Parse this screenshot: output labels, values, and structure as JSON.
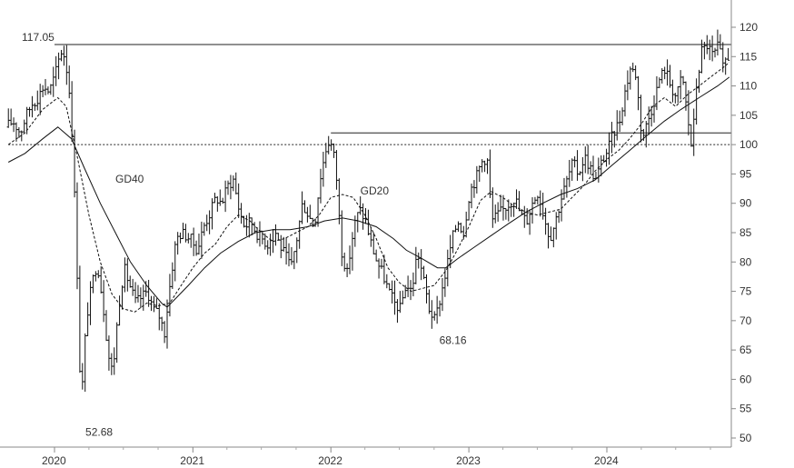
{
  "chart_data": {
    "type": "ohlc",
    "y_axis": {
      "side": "right",
      "ticks": [
        120,
        115,
        110,
        105,
        100,
        95,
        90,
        85,
        80,
        75,
        70,
        65,
        60,
        55,
        50
      ],
      "range": [
        48,
        124
      ]
    },
    "x_axis": {
      "range": [
        "2019-09-01",
        "2024-12-15"
      ],
      "ticks": [
        {
          "label": "2020",
          "date": "2020-01-01"
        },
        {
          "label": "2021",
          "date": "2021-01-01"
        },
        {
          "label": "2022",
          "date": "2022-01-01"
        },
        {
          "label": "2023",
          "date": "2023-01-01"
        },
        {
          "label": "2024",
          "date": "2024-01-01"
        }
      ]
    },
    "horizontal_lines": [
      {
        "value": 117.05,
        "style": "solid",
        "from": "2020-01-01",
        "to": "2024-12-15"
      },
      {
        "value": 102.0,
        "style": "solid",
        "from": "2022-01-01",
        "to": "2024-12-15"
      },
      {
        "value": 100,
        "style": "dotted",
        "from": "2019-09-01",
        "to": "2024-12-15"
      }
    ],
    "annotations": [
      {
        "text": "117.05",
        "date": "2020-01-01",
        "value": 117.05
      },
      {
        "text": "52.68",
        "date": "2020-03-18",
        "value": 52.68
      },
      {
        "text": "68.16",
        "date": "2022-10-10",
        "value": 68.16
      },
      {
        "text": "GD40",
        "date": "2020-06-10",
        "value": 93.5
      },
      {
        "text": "GD20",
        "date": "2022-03-20",
        "value": 91.5
      }
    ],
    "series": [
      {
        "name": "GD40",
        "style": "solid",
        "points": [
          [
            "2019-09-01",
            97.0
          ],
          [
            "2019-10-15",
            98.5
          ],
          [
            "2019-12-01",
            101.0
          ],
          [
            "2020-01-10",
            103.0
          ],
          [
            "2020-02-15",
            101.0
          ],
          [
            "2020-03-20",
            96.0
          ],
          [
            "2020-05-01",
            90.0
          ],
          [
            "2020-06-10",
            85.0
          ],
          [
            "2020-07-20",
            80.0
          ],
          [
            "2020-09-01",
            76.0
          ],
          [
            "2020-10-10",
            73.0
          ],
          [
            "2020-10-25",
            72.3
          ],
          [
            "2020-11-20",
            74.0
          ],
          [
            "2020-12-20",
            76.0
          ],
          [
            "2021-02-01",
            79.0
          ],
          [
            "2021-03-15",
            81.5
          ],
          [
            "2021-05-01",
            83.5
          ],
          [
            "2021-06-15",
            85.0
          ],
          [
            "2021-08-01",
            85.5
          ],
          [
            "2021-09-15",
            85.5
          ],
          [
            "2021-11-01",
            86.0
          ],
          [
            "2021-12-15",
            87.0
          ],
          [
            "2022-02-01",
            87.5
          ],
          [
            "2022-03-15",
            87.0
          ],
          [
            "2022-05-01",
            86.0
          ],
          [
            "2022-06-15",
            84.0
          ],
          [
            "2022-07-20",
            82.0
          ],
          [
            "2022-09-01",
            80.5
          ],
          [
            "2022-10-10",
            79.0
          ],
          [
            "2022-11-01",
            79.0
          ],
          [
            "2022-12-01",
            80.5
          ],
          [
            "2023-01-15",
            82.5
          ],
          [
            "2023-03-01",
            84.5
          ],
          [
            "2023-04-15",
            86.5
          ],
          [
            "2023-06-01",
            88.5
          ],
          [
            "2023-07-15",
            90.0
          ],
          [
            "2023-09-01",
            91.5
          ],
          [
            "2023-10-15",
            92.5
          ],
          [
            "2023-12-01",
            94.0
          ],
          [
            "2024-01-15",
            96.5
          ],
          [
            "2024-03-01",
            99.0
          ],
          [
            "2024-04-15",
            101.5
          ],
          [
            "2024-06-01",
            104.0
          ],
          [
            "2024-07-15",
            106.0
          ],
          [
            "2024-09-01",
            108.0
          ],
          [
            "2024-10-20",
            110.0
          ],
          [
            "2024-11-20",
            111.5
          ]
        ]
      },
      {
        "name": "GD20",
        "style": "dashed",
        "points": [
          [
            "2019-09-01",
            100.0
          ],
          [
            "2019-10-15",
            102.0
          ],
          [
            "2019-12-01",
            106.0
          ],
          [
            "2020-01-10",
            108.0
          ],
          [
            "2020-02-01",
            106.5
          ],
          [
            "2020-03-01",
            98.0
          ],
          [
            "2020-04-01",
            88.0
          ],
          [
            "2020-05-01",
            80.0
          ],
          [
            "2020-06-01",
            74.5
          ],
          [
            "2020-07-01",
            72.0
          ],
          [
            "2020-08-01",
            71.5
          ],
          [
            "2020-09-01",
            73.0
          ],
          [
            "2020-10-01",
            72.5
          ],
          [
            "2020-11-01",
            73.0
          ],
          [
            "2020-12-01",
            76.0
          ],
          [
            "2021-01-01",
            79.0
          ],
          [
            "2021-02-01",
            81.5
          ],
          [
            "2021-03-01",
            83.0
          ],
          [
            "2021-04-01",
            86.0
          ],
          [
            "2021-05-01",
            88.0
          ],
          [
            "2021-06-01",
            87.0
          ],
          [
            "2021-07-01",
            85.0
          ],
          [
            "2021-08-01",
            83.5
          ],
          [
            "2021-09-01",
            84.0
          ],
          [
            "2021-10-01",
            85.0
          ],
          [
            "2021-11-01",
            86.0
          ],
          [
            "2021-12-01",
            88.0
          ],
          [
            "2022-01-01",
            91.0
          ],
          [
            "2022-02-01",
            91.5
          ],
          [
            "2022-03-01",
            91.0
          ],
          [
            "2022-04-01",
            88.0
          ],
          [
            "2022-05-01",
            84.0
          ],
          [
            "2022-06-01",
            79.0
          ],
          [
            "2022-07-01",
            76.5
          ],
          [
            "2022-08-01",
            75.0
          ],
          [
            "2022-09-01",
            75.5
          ],
          [
            "2022-10-01",
            76.0
          ],
          [
            "2022-11-01",
            78.5
          ],
          [
            "2022-12-01",
            82.0
          ],
          [
            "2023-01-01",
            86.0
          ],
          [
            "2023-02-01",
            90.5
          ],
          [
            "2023-03-01",
            92.0
          ],
          [
            "2023-04-01",
            91.0
          ],
          [
            "2023-05-01",
            89.5
          ],
          [
            "2023-06-01",
            88.5
          ],
          [
            "2023-07-01",
            88.0
          ],
          [
            "2023-08-01",
            88.5
          ],
          [
            "2023-09-01",
            89.0
          ],
          [
            "2023-10-01",
            91.0
          ],
          [
            "2023-11-01",
            93.0
          ],
          [
            "2023-12-01",
            95.5
          ],
          [
            "2024-01-01",
            97.5
          ],
          [
            "2024-02-01",
            99.0
          ],
          [
            "2024-03-01",
            101.0
          ],
          [
            "2024-04-01",
            103.5
          ],
          [
            "2024-05-01",
            106.5
          ],
          [
            "2024-06-01",
            108.0
          ],
          [
            "2024-07-01",
            106.5
          ],
          [
            "2024-08-01",
            108.5
          ],
          [
            "2024-09-01",
            110.0
          ],
          [
            "2024-10-01",
            111.5
          ],
          [
            "2024-11-01",
            113.0
          ],
          [
            "2024-11-20",
            114.0
          ]
        ]
      }
    ],
    "price_path": [
      [
        "2019-09-01",
        103
      ],
      [
        "2019-09-20",
        104
      ],
      [
        "2019-10-10",
        102
      ],
      [
        "2019-10-25",
        105
      ],
      [
        "2019-11-10",
        107
      ],
      [
        "2019-11-25",
        108
      ],
      [
        "2019-12-10",
        110
      ],
      [
        "2019-12-25",
        109
      ],
      [
        "2020-01-10",
        112
      ],
      [
        "2020-01-25",
        116
      ],
      [
        "2020-02-05",
        115
      ],
      [
        "2020-02-20",
        107
      ],
      [
        "2020-03-05",
        85
      ],
      [
        "2020-03-18",
        55
      ],
      [
        "2020-04-01",
        70
      ],
      [
        "2020-04-15",
        76
      ],
      [
        "2020-04-30",
        80
      ],
      [
        "2020-05-15",
        73
      ],
      [
        "2020-05-30",
        64
      ],
      [
        "2020-06-10",
        61
      ],
      [
        "2020-06-25",
        72
      ],
      [
        "2020-07-10",
        79
      ],
      [
        "2020-07-25",
        76
      ],
      [
        "2020-08-10",
        73
      ],
      [
        "2020-08-25",
        74
      ],
      [
        "2020-09-10",
        75
      ],
      [
        "2020-09-25",
        72
      ],
      [
        "2020-10-10",
        71
      ],
      [
        "2020-10-25",
        68
      ],
      [
        "2020-11-10",
        77
      ],
      [
        "2020-11-25",
        84
      ],
      [
        "2020-12-10",
        85
      ],
      [
        "2021-01-01",
        84
      ],
      [
        "2021-01-20",
        82
      ],
      [
        "2021-02-05",
        86
      ],
      [
        "2021-02-20",
        88
      ],
      [
        "2021-03-10",
        91
      ],
      [
        "2021-03-25",
        90
      ],
      [
        "2021-04-10",
        93
      ],
      [
        "2021-04-25",
        94
      ],
      [
        "2021-05-10",
        89
      ],
      [
        "2021-05-25",
        86
      ],
      [
        "2021-06-10",
        87
      ],
      [
        "2021-06-25",
        85
      ],
      [
        "2021-07-10",
        84
      ],
      [
        "2021-07-25",
        83
      ],
      [
        "2021-08-10",
        86
      ],
      [
        "2021-08-25",
        83
      ],
      [
        "2021-09-10",
        81
      ],
      [
        "2021-09-25",
        79
      ],
      [
        "2021-10-10",
        84
      ],
      [
        "2021-10-25",
        90
      ],
      [
        "2021-11-10",
        88
      ],
      [
        "2021-11-25",
        86
      ],
      [
        "2021-12-10",
        94
      ],
      [
        "2021-12-25",
        99
      ],
      [
        "2022-01-05",
        101
      ],
      [
        "2022-01-20",
        97
      ],
      [
        "2022-02-05",
        82
      ],
      [
        "2022-02-20",
        78
      ],
      [
        "2022-03-10",
        86
      ],
      [
        "2022-03-25",
        89
      ],
      [
        "2022-04-10",
        87
      ],
      [
        "2022-04-25",
        83
      ],
      [
        "2022-05-10",
        80
      ],
      [
        "2022-05-25",
        78
      ],
      [
        "2022-06-10",
        75
      ],
      [
        "2022-06-25",
        73
      ],
      [
        "2022-07-10",
        72
      ],
      [
        "2022-07-25",
        76
      ],
      [
        "2022-08-10",
        75
      ],
      [
        "2022-08-25",
        82
      ],
      [
        "2022-09-10",
        77
      ],
      [
        "2022-09-25",
        72
      ],
      [
        "2022-10-10",
        70
      ],
      [
        "2022-10-25",
        74
      ],
      [
        "2022-11-10",
        79
      ],
      [
        "2022-11-25",
        84
      ],
      [
        "2022-12-10",
        87
      ],
      [
        "2022-12-25",
        85
      ],
      [
        "2023-01-10",
        92
      ],
      [
        "2023-01-25",
        94
      ],
      [
        "2023-02-10",
        97
      ],
      [
        "2023-02-25",
        98
      ],
      [
        "2023-03-10",
        87
      ],
      [
        "2023-03-25",
        88
      ],
      [
        "2023-04-10",
        89
      ],
      [
        "2023-04-25",
        90
      ],
      [
        "2023-05-10",
        91
      ],
      [
        "2023-05-25",
        88
      ],
      [
        "2023-06-10",
        87
      ],
      [
        "2023-06-25",
        90
      ],
      [
        "2023-07-10",
        92
      ],
      [
        "2023-07-25",
        88
      ],
      [
        "2023-08-10",
        84
      ],
      [
        "2023-08-25",
        87
      ],
      [
        "2023-09-10",
        91
      ],
      [
        "2023-09-25",
        94
      ],
      [
        "2023-10-10",
        97
      ],
      [
        "2023-10-25",
        95
      ],
      [
        "2023-11-10",
        98
      ],
      [
        "2023-11-25",
        96
      ],
      [
        "2023-12-10",
        94
      ],
      [
        "2023-12-25",
        97
      ],
      [
        "2024-01-10",
        99
      ],
      [
        "2024-01-25",
        102
      ],
      [
        "2024-02-10",
        104
      ],
      [
        "2024-02-25",
        109
      ],
      [
        "2024-03-10",
        113
      ],
      [
        "2024-03-25",
        112
      ],
      [
        "2024-04-10",
        101
      ],
      [
        "2024-04-25",
        104
      ],
      [
        "2024-05-10",
        107
      ],
      [
        "2024-05-25",
        111
      ],
      [
        "2024-06-10",
        113
      ],
      [
        "2024-06-25",
        110
      ],
      [
        "2024-07-10",
        108
      ],
      [
        "2024-07-25",
        112
      ],
      [
        "2024-08-10",
        104
      ],
      [
        "2024-08-20",
        99
      ],
      [
        "2024-09-01",
        110
      ],
      [
        "2024-09-15",
        116
      ],
      [
        "2024-09-30",
        117
      ],
      [
        "2024-10-15",
        115
      ],
      [
        "2024-10-30",
        117
      ],
      [
        "2024-11-10",
        113
      ],
      [
        "2024-11-20",
        115
      ]
    ]
  }
}
